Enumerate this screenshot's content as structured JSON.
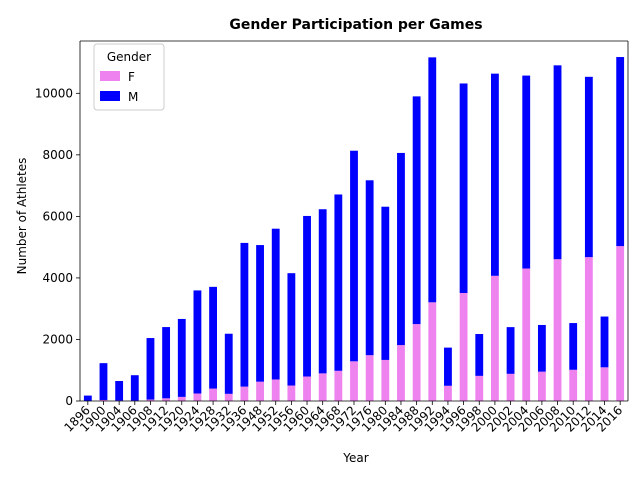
{
  "chart_data": {
    "type": "bar",
    "stacked": true,
    "title": "Gender Participation per Games",
    "xlabel": "Year",
    "ylabel": "Number of Athletes",
    "ylim": [
      0,
      11700
    ],
    "yticks": [
      0,
      2000,
      4000,
      6000,
      8000,
      10000
    ],
    "grid": false,
    "legend": {
      "title": "Gender",
      "position": "top-left"
    },
    "categories": [
      "1896",
      "1900",
      "1904",
      "1906",
      "1908",
      "1912",
      "1920",
      "1924",
      "1928",
      "1932",
      "1936",
      "1948",
      "1952",
      "1956",
      "1960",
      "1964",
      "1968",
      "1972",
      "1976",
      "1980",
      "1984",
      "1988",
      "1992",
      "1994",
      "1996",
      "1998",
      "2000",
      "2002",
      "2004",
      "2006",
      "2008",
      "2010",
      "2012",
      "2014",
      "2016"
    ],
    "series": [
      {
        "name": "F",
        "color": "#ee82ee",
        "values": [
          0,
          33,
          16,
          11,
          47,
          87,
          134,
          244,
          404,
          233,
          468,
          628,
          700,
          503,
          796,
          898,
          982,
          1290,
          1489,
          1335,
          1817,
          2500,
          3208,
          495,
          3510,
          817,
          4069,
          883,
          4306,
          954,
          4609,
          1015,
          4676,
          1095,
          5034
        ]
      },
      {
        "name": "M",
        "color": "#0000ff",
        "values": [
          176,
          1197,
          634,
          827,
          1999,
          2316,
          2533,
          3350,
          3306,
          1953,
          4670,
          4440,
          4900,
          3651,
          5218,
          5334,
          5730,
          6844,
          5684,
          4979,
          6245,
          7400,
          7960,
          1240,
          6810,
          1360,
          6570,
          1518,
          6270,
          1517,
          6300,
          1518,
          5860,
          1650,
          6145
        ]
      }
    ]
  }
}
